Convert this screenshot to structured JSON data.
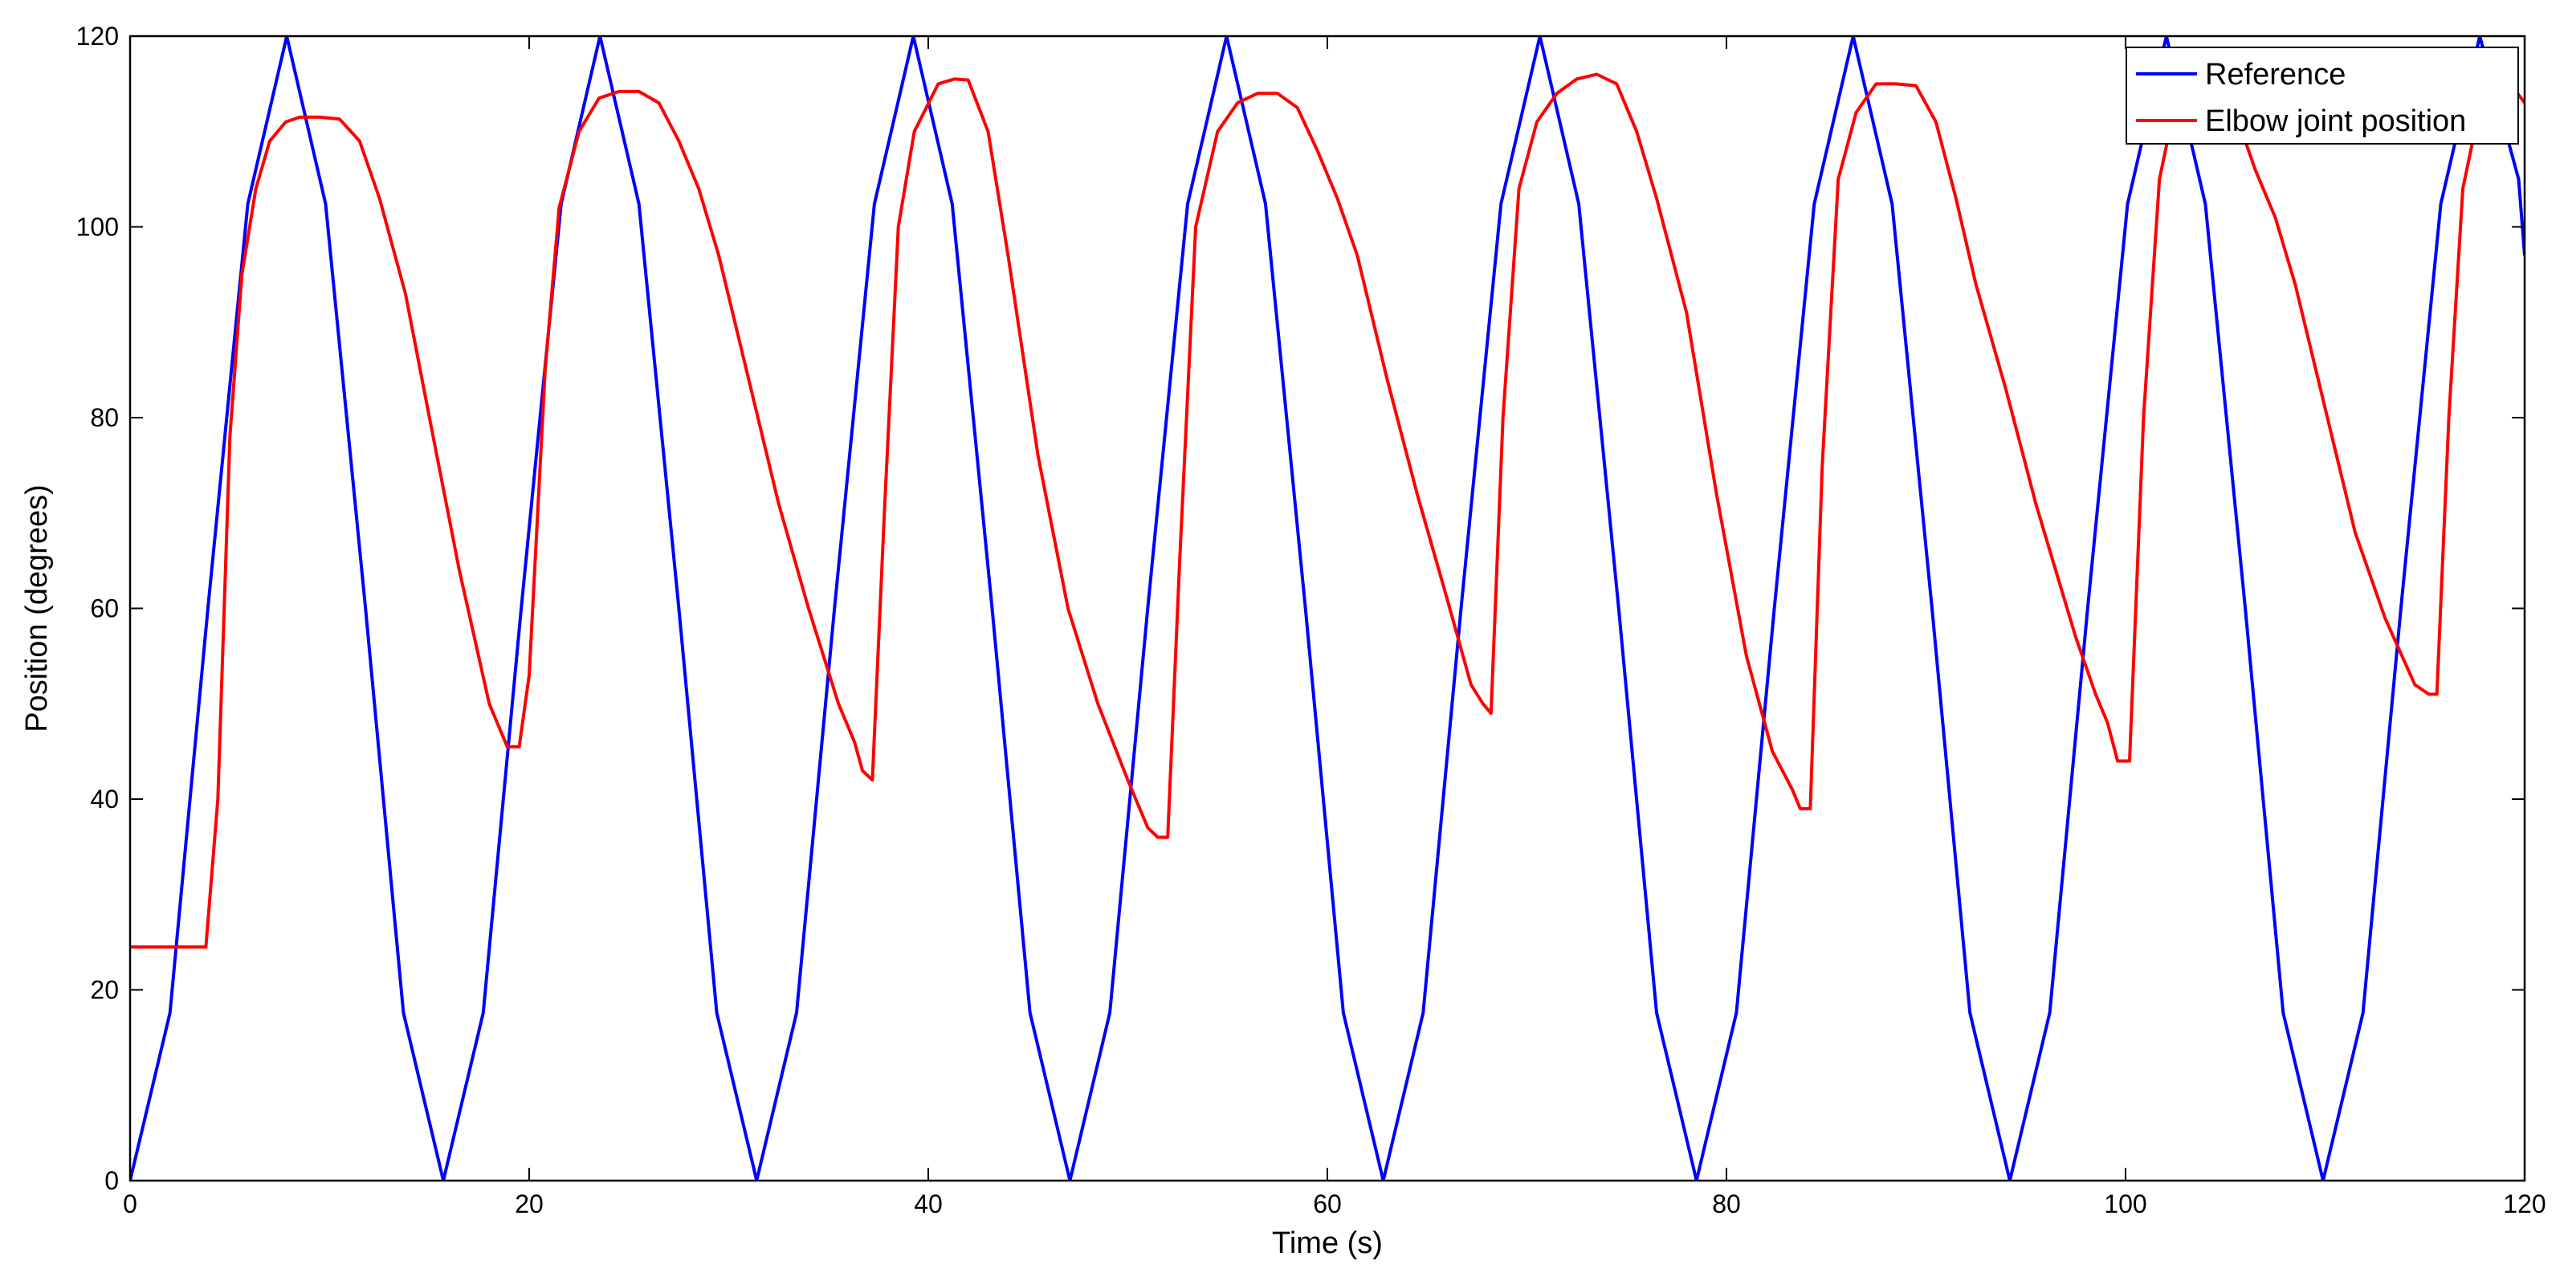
{
  "chart_data": {
    "type": "line",
    "title": "",
    "xlabel": "Time (s)",
    "ylabel": "Position (degrees)",
    "xlim": [
      0,
      120
    ],
    "ylim": [
      0,
      120
    ],
    "xticks": [
      "0",
      "20",
      "40",
      "60",
      "80",
      "100",
      "120"
    ],
    "yticks": [
      "0",
      "20",
      "40",
      "60",
      "80",
      "100",
      "120"
    ],
    "grid": false,
    "legend_position": "top-right",
    "series": [
      {
        "name": "Reference",
        "color": "#0000ff",
        "x": [
          0,
          2,
          3.9,
          5.9,
          7.85,
          9.8,
          11.8,
          13.7,
          15.7,
          17.7,
          19.6,
          21.6,
          23.55,
          25.5,
          27.5,
          29.4,
          31.4,
          33.4,
          35.3,
          37.3,
          39.25,
          41.2,
          43.2,
          45.1,
          47.1,
          49.1,
          51,
          53,
          54.95,
          56.9,
          58.9,
          60.8,
          62.8,
          64.8,
          66.7,
          68.7,
          70.65,
          72.6,
          74.6,
          76.5,
          78.5,
          80.5,
          82.4,
          84.4,
          86.35,
          88.3,
          90.3,
          92.2,
          94.2,
          96.2,
          98.1,
          100.1,
          102.05,
          104,
          106,
          107.9,
          109.9,
          111.9,
          113.8,
          115.8,
          117.75,
          119.7,
          120
        ],
        "values": [
          0,
          17.6,
          60,
          102.4,
          120,
          102.4,
          60,
          17.6,
          0,
          17.6,
          60,
          102.4,
          120,
          102.4,
          60,
          17.6,
          0,
          17.6,
          60,
          102.4,
          120,
          102.4,
          60,
          17.6,
          0,
          17.6,
          60,
          102.4,
          120,
          102.4,
          60,
          17.6,
          0,
          17.6,
          60,
          102.4,
          120,
          102.4,
          60,
          17.6,
          0,
          17.6,
          60,
          102.4,
          120,
          102.4,
          60,
          17.6,
          0,
          17.6,
          60,
          102.4,
          120,
          102.4,
          60,
          17.6,
          0,
          17.6,
          60,
          102.4,
          120,
          105,
          97
        ]
      },
      {
        "name": "Elbow joint position",
        "color": "#ff0000",
        "x": [
          0,
          3.8,
          4.4,
          5,
          5.6,
          6.3,
          7,
          7.8,
          8.5,
          9.5,
          10.5,
          11.5,
          12.5,
          13.8,
          15,
          16.5,
          18,
          18.9,
          19.5,
          20,
          20.8,
          21.5,
          22.5,
          23.5,
          24.5,
          25.5,
          26.5,
          27.5,
          28.5,
          29.5,
          31,
          32.5,
          34,
          35.5,
          36.3,
          36.7,
          37.2,
          37.8,
          38.5,
          39.3,
          40.5,
          41.3,
          42,
          43,
          44,
          45.5,
          47,
          48.5,
          50,
          51,
          51.5,
          52,
          52.6,
          53.4,
          54.5,
          55.5,
          56.5,
          57.5,
          58.5,
          59.5,
          60.5,
          61.5,
          63,
          64.5,
          66,
          67.2,
          67.8,
          68.2,
          68.8,
          69.6,
          70.5,
          71.5,
          72.5,
          73.5,
          74.5,
          75.5,
          76.5,
          78,
          79.5,
          81,
          82.3,
          83.3,
          83.7,
          84.2,
          84.8,
          85.6,
          86.5,
          87.5,
          88.5,
          89.5,
          90.5,
          91.5,
          92.5,
          94,
          95.5,
          96.5,
          97.5,
          98.5,
          99.1,
          99.6,
          100.2,
          100.9,
          101.7,
          102.5,
          103.5,
          104.5,
          105.5,
          106.5,
          107.5,
          108.5,
          110,
          111.5,
          113,
          114.5,
          115.2,
          115.6,
          116.2,
          116.9,
          117.7,
          118.6,
          119.3,
          120
        ],
        "values": [
          24.5,
          24.5,
          40,
          78,
          95,
          104,
          109,
          111,
          111.5,
          111.5,
          111.3,
          109,
          103,
          93,
          80,
          64,
          50,
          45.5,
          45.5,
          53,
          85,
          102,
          110,
          113.5,
          114.2,
          114.2,
          113,
          109,
          104,
          97,
          84,
          71,
          60,
          50,
          46,
          43,
          42,
          70,
          100,
          110,
          115,
          115.5,
          115.4,
          110,
          97,
          76,
          60,
          50,
          42,
          37,
          36,
          36,
          65,
          100,
          110,
          113,
          114,
          114,
          112.5,
          108,
          103,
          97,
          84,
          72,
          61,
          52,
          50,
          49,
          80,
          104,
          111,
          114,
          115.5,
          116,
          115,
          110,
          103,
          91,
          72,
          55,
          45,
          41,
          39,
          39,
          75,
          105,
          112,
          115,
          115,
          114.8,
          111,
          103,
          94,
          83,
          71,
          64,
          57,
          51,
          48,
          44,
          44,
          80,
          105,
          113,
          115.5,
          115.5,
          112,
          106,
          101,
          94,
          81,
          68,
          59,
          52,
          51,
          51,
          80,
          104,
          112,
          116.5,
          115,
          113
        ]
      }
    ]
  }
}
